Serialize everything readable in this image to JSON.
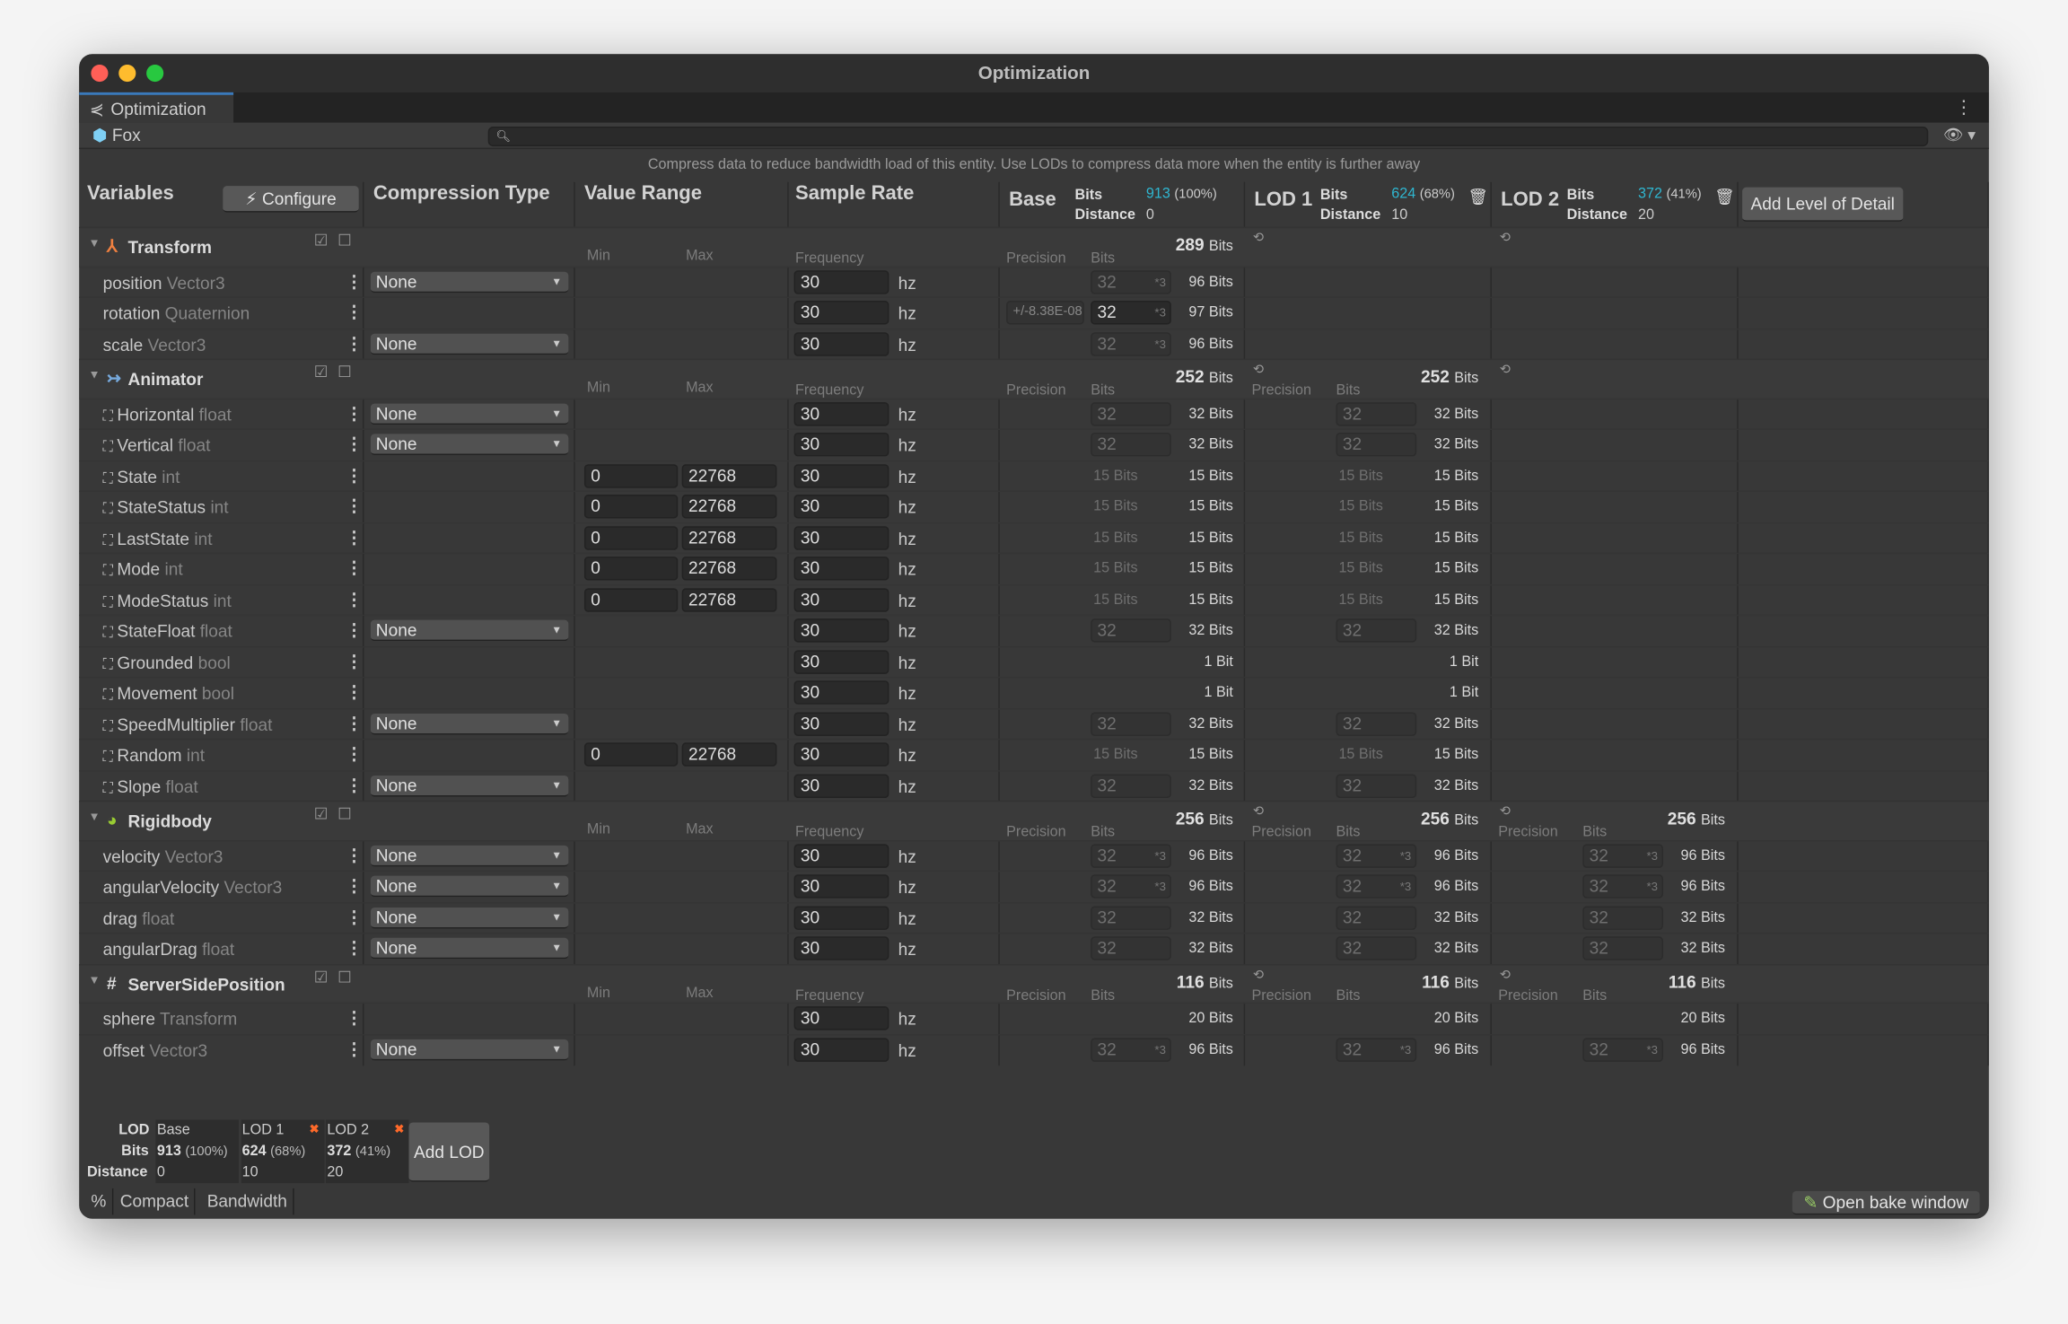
{
  "window": {
    "title": "Optimization",
    "tab": "Optimization",
    "entity": "Fox",
    "search_placeholder": "",
    "hint": "Compress data to reduce bandwidth load of this entity. Use LODs to compress data more when the entity is further away",
    "traffic": [
      "#ff5f57",
      "#febc2e",
      "#28c840"
    ]
  },
  "columns": {
    "variables": "Variables",
    "configure": "Configure",
    "compression": "Compression Type",
    "value_range": "Value Range",
    "sample_rate": "Sample Rate",
    "add_lod": "Add Level of Detail"
  },
  "labels": {
    "bits": "Bits",
    "distance": "Distance",
    "min": "Min",
    "max": "Max",
    "frequency": "Frequency",
    "precision": "Precision",
    "hz": "hz",
    "bits_suffix": "Bits",
    "bit_suffix": "Bit"
  },
  "lods": [
    {
      "name": "Base",
      "bits": "913",
      "pct": "(100%)",
      "distance": "0"
    },
    {
      "name": "LOD 1",
      "bits": "624",
      "pct": "(68%)",
      "distance": "10"
    },
    {
      "name": "LOD 2",
      "bits": "372",
      "pct": "(41%)",
      "distance": "20"
    }
  ],
  "colors": {
    "accent": "#2fb6d0",
    "remove": "#ff6a2a"
  },
  "groups": [
    {
      "name": "Transform",
      "icon": "transform-icon",
      "totals": [
        "289",
        null,
        null
      ],
      "lod_icons": [
        false,
        true,
        true
      ],
      "rows": [
        {
          "name": "position",
          "type": "Vector3",
          "comp": "None",
          "freq": "30",
          "c": [
            {
              "bits": "32",
              "mult": "*3",
              "dim": true,
              "total": "96"
            },
            null,
            null
          ]
        },
        {
          "name": "rotation",
          "type": "Quaternion",
          "comp": null,
          "freq": "30",
          "c": [
            {
              "prec": "+/-8.38E-08",
              "bits": "32",
              "mult": "*3",
              "dim": false,
              "total": "97"
            },
            null,
            null
          ]
        },
        {
          "name": "scale",
          "type": "Vector3",
          "comp": "None",
          "freq": "30",
          "c": [
            {
              "bits": "32",
              "mult": "*3",
              "dim": true,
              "total": "96"
            },
            null,
            null
          ]
        }
      ]
    },
    {
      "name": "Animator",
      "icon": "animator-icon",
      "totals": [
        "252",
        "252",
        null
      ],
      "lod_icons": [
        false,
        true,
        true
      ],
      "rows": [
        {
          "name": "Horizontal",
          "type": "float",
          "comp": "None",
          "freq": "30",
          "c": [
            {
              "bits": "32",
              "dim": true,
              "total": "32"
            },
            {
              "bits": "32",
              "dim": true,
              "total": "32"
            },
            null
          ]
        },
        {
          "name": "Vertical",
          "type": "float",
          "comp": "None",
          "freq": "30",
          "c": [
            {
              "bits": "32",
              "dim": true,
              "total": "32"
            },
            {
              "bits": "32",
              "dim": true,
              "total": "32"
            },
            null
          ]
        },
        {
          "name": "State",
          "type": "int",
          "comp": null,
          "range": [
            "0",
            "22768"
          ],
          "freq": "30",
          "c": [
            {
              "label": "15 Bits",
              "total": "15"
            },
            {
              "label": "15 Bits",
              "total": "15"
            },
            null
          ]
        },
        {
          "name": "StateStatus",
          "type": "int",
          "comp": null,
          "range": [
            "0",
            "22768"
          ],
          "freq": "30",
          "c": [
            {
              "label": "15 Bits",
              "total": "15"
            },
            {
              "label": "15 Bits",
              "total": "15"
            },
            null
          ]
        },
        {
          "name": "LastState",
          "type": "int",
          "comp": null,
          "range": [
            "0",
            "22768"
          ],
          "freq": "30",
          "c": [
            {
              "label": "15 Bits",
              "total": "15"
            },
            {
              "label": "15 Bits",
              "total": "15"
            },
            null
          ]
        },
        {
          "name": "Mode",
          "type": "int",
          "comp": null,
          "range": [
            "0",
            "22768"
          ],
          "freq": "30",
          "c": [
            {
              "label": "15 Bits",
              "total": "15"
            },
            {
              "label": "15 Bits",
              "total": "15"
            },
            null
          ]
        },
        {
          "name": "ModeStatus",
          "type": "int",
          "comp": null,
          "range": [
            "0",
            "22768"
          ],
          "freq": "30",
          "c": [
            {
              "label": "15 Bits",
              "total": "15"
            },
            {
              "label": "15 Bits",
              "total": "15"
            },
            null
          ]
        },
        {
          "name": "StateFloat",
          "type": "float",
          "comp": "None",
          "freq": "30",
          "c": [
            {
              "bits": "32",
              "dim": true,
              "total": "32"
            },
            {
              "bits": "32",
              "dim": true,
              "total": "32"
            },
            null
          ]
        },
        {
          "name": "Grounded",
          "type": "bool",
          "comp": null,
          "freq": "30",
          "c": [
            {
              "total": "1",
              "single": true
            },
            {
              "total": "1",
              "single": true
            },
            null
          ]
        },
        {
          "name": "Movement",
          "type": "bool",
          "comp": null,
          "freq": "30",
          "c": [
            {
              "total": "1",
              "single": true
            },
            {
              "total": "1",
              "single": true
            },
            null
          ]
        },
        {
          "name": "SpeedMultiplier",
          "type": "float",
          "comp": "None",
          "freq": "30",
          "c": [
            {
              "bits": "32",
              "dim": true,
              "total": "32"
            },
            {
              "bits": "32",
              "dim": true,
              "total": "32"
            },
            null
          ]
        },
        {
          "name": "Random",
          "type": "int",
          "comp": null,
          "range": [
            "0",
            "22768"
          ],
          "freq": "30",
          "c": [
            {
              "label": "15 Bits",
              "total": "15"
            },
            {
              "label": "15 Bits",
              "total": "15"
            },
            null
          ]
        },
        {
          "name": "Slope",
          "type": "float",
          "comp": "None",
          "freq": "30",
          "c": [
            {
              "bits": "32",
              "dim": true,
              "total": "32"
            },
            {
              "bits": "32",
              "dim": true,
              "total": "32"
            },
            null
          ]
        }
      ]
    },
    {
      "name": "Rigidbody",
      "icon": "rigidbody-icon",
      "totals": [
        "256",
        "256",
        "256"
      ],
      "lod_icons": [
        false,
        true,
        true
      ],
      "rows": [
        {
          "name": "velocity",
          "type": "Vector3",
          "comp": "None",
          "freq": "30",
          "c": [
            {
              "bits": "32",
              "mult": "*3",
              "dim": true,
              "total": "96"
            },
            {
              "bits": "32",
              "mult": "*3",
              "dim": true,
              "total": "96"
            },
            {
              "bits": "32",
              "mult": "*3",
              "dim": true,
              "total": "96"
            }
          ]
        },
        {
          "name": "angularVelocity",
          "type": "Vector3",
          "comp": "None",
          "freq": "30",
          "c": [
            {
              "bits": "32",
              "mult": "*3",
              "dim": true,
              "total": "96"
            },
            {
              "bits": "32",
              "mult": "*3",
              "dim": true,
              "total": "96"
            },
            {
              "bits": "32",
              "mult": "*3",
              "dim": true,
              "total": "96"
            }
          ]
        },
        {
          "name": "drag",
          "type": "float",
          "comp": "None",
          "freq": "30",
          "c": [
            {
              "bits": "32",
              "dim": true,
              "total": "32"
            },
            {
              "bits": "32",
              "dim": true,
              "total": "32"
            },
            {
              "bits": "32",
              "dim": true,
              "total": "32"
            }
          ]
        },
        {
          "name": "angularDrag",
          "type": "float",
          "comp": "None",
          "freq": "30",
          "c": [
            {
              "bits": "32",
              "dim": true,
              "total": "32"
            },
            {
              "bits": "32",
              "dim": true,
              "total": "32"
            },
            {
              "bits": "32",
              "dim": true,
              "total": "32"
            }
          ]
        }
      ]
    },
    {
      "name": "ServerSidePosition",
      "icon": "script-icon",
      "totals": [
        "116",
        "116",
        "116"
      ],
      "lod_icons": [
        false,
        true,
        true
      ],
      "rows": [
        {
          "name": "sphere",
          "type": "Transform",
          "comp": null,
          "freq": "30",
          "c": [
            {
              "total": "20"
            },
            {
              "total": "20"
            },
            {
              "total": "20"
            }
          ]
        },
        {
          "name": "offset",
          "type": "Vector3",
          "comp": "None",
          "freq": "30",
          "c": [
            {
              "bits": "32",
              "mult": "*3",
              "dim": true,
              "total": "96"
            },
            {
              "bits": "32",
              "mult": "*3",
              "dim": true,
              "total": "96"
            },
            {
              "bits": "32",
              "mult": "*3",
              "dim": true,
              "total": "96"
            }
          ]
        }
      ]
    }
  ],
  "summary": {
    "lod_label": "LOD",
    "bits_label": "Bits",
    "distance_label": "Distance",
    "add_lod": "Add LOD",
    "tabs": [
      "%",
      "Compact",
      "Bandwidth"
    ],
    "open_bake": "Open bake window"
  }
}
